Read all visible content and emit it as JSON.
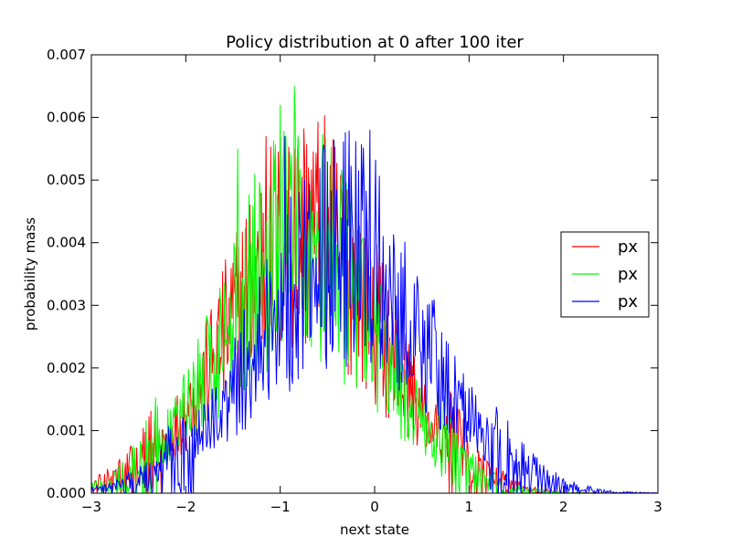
{
  "chart_data": {
    "type": "line",
    "title": "Policy distribution at 0 after 100 iter",
    "xlabel": "next state",
    "ylabel": "probability mass",
    "xlim": [
      -3,
      3
    ],
    "ylim": [
      0,
      0.007
    ],
    "xticks": [
      -3,
      -2,
      -1,
      0,
      1,
      2,
      3
    ],
    "xtick_labels": [
      "−3",
      "−2",
      "−1",
      "0",
      "1",
      "2",
      "3"
    ],
    "yticks": [
      0,
      0.001,
      0.002,
      0.003,
      0.004,
      0.005,
      0.006,
      0.007
    ],
    "ytick_labels": [
      "0.000",
      "0.001",
      "0.002",
      "0.003",
      "0.004",
      "0.005",
      "0.006",
      "0.007"
    ],
    "grid": false,
    "legend_position": "center-right",
    "points_per_series": 601,
    "series": [
      {
        "name": "px",
        "color": "#ff0000",
        "envelope": {
          "center": -0.75,
          "sigma": 0.82,
          "peak": 0.0042,
          "noise": 0.45
        },
        "peaks": [
          [
            -1.15,
            0.0057
          ],
          [
            -0.85,
            0.0055
          ],
          [
            -0.7,
            0.0052
          ]
        ]
      },
      {
        "name": "px",
        "color": "#00ff00",
        "envelope": {
          "center": -0.8,
          "sigma": 0.8,
          "peak": 0.0041,
          "noise": 0.45
        },
        "peaks": [
          [
            -0.85,
            0.0065
          ],
          [
            -1.0,
            0.0062
          ],
          [
            -1.45,
            0.0055
          ]
        ]
      },
      {
        "name": "px",
        "color": "#0000ff",
        "envelope": {
          "center": -0.35,
          "sigma": 0.88,
          "peak": 0.0039,
          "noise": 0.45
        },
        "peaks": [
          [
            -0.05,
            0.0058
          ],
          [
            -0.95,
            0.0057
          ],
          [
            -0.55,
            0.0054
          ]
        ]
      }
    ]
  }
}
